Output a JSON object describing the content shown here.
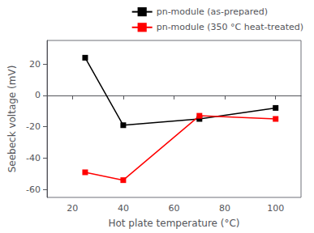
{
  "chart_data": {
    "type": "line",
    "x": [
      25,
      40,
      70,
      100
    ],
    "series": [
      {
        "name": "pn-module (as-prepared)",
        "color": "#000000",
        "values": [
          24.0,
          -19.0,
          -15.0,
          -8.0
        ]
      },
      {
        "name": "pn-module (350 °C heat-treated)",
        "color": "#ff0000",
        "values": [
          -49.0,
          -54.0,
          -13.0,
          -15.0
        ]
      }
    ],
    "xlabel": "Hot plate temperature (°C)",
    "ylabel": "Seebeck voltage (mV)",
    "xlim": [
      10,
      110
    ],
    "ylim": [
      -65,
      35
    ],
    "xticks": [
      20,
      40,
      60,
      80,
      100
    ],
    "yticks": [
      -60.0,
      -40.0,
      -20.0,
      0.0,
      20.0
    ],
    "marker": "square",
    "grid": false,
    "legend": "upper right"
  }
}
